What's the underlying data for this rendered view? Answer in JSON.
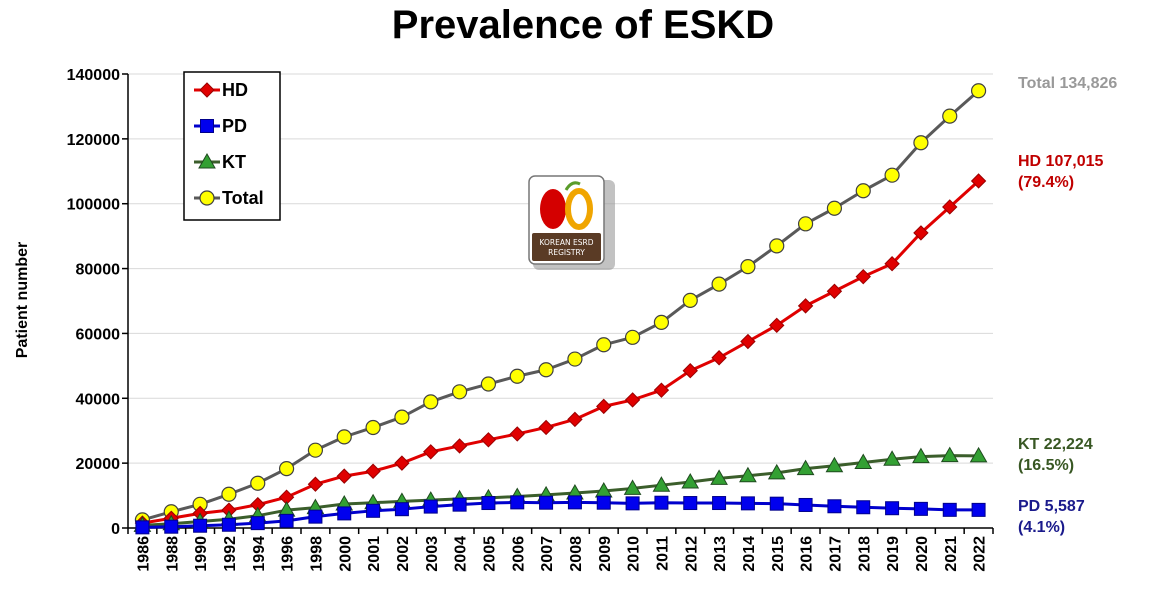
{
  "chart_data": {
    "type": "line",
    "title": "Prevalence of ESKD",
    "ylabel": "Patient number",
    "xlabel": "",
    "ylim": [
      0,
      140000
    ],
    "yticks": [
      0,
      20000,
      40000,
      60000,
      80000,
      100000,
      120000,
      140000
    ],
    "grid": "horizontal",
    "legend_position": "top-left",
    "categories": [
      "1986",
      "1988",
      "1990",
      "1992",
      "1994",
      "1996",
      "1998",
      "2000",
      "2001",
      "2002",
      "2003",
      "2004",
      "2005",
      "2006",
      "2007",
      "2008",
      "2009",
      "2010",
      "2011",
      "2012",
      "2013",
      "2014",
      "2015",
      "2016",
      "2017",
      "2018",
      "2019",
      "2020",
      "2021",
      "2022"
    ],
    "series": [
      {
        "name": "HD",
        "color": "#e00000",
        "marker": "diamond",
        "markerColor": "#e00000",
        "values": [
          1500,
          3000,
          4500,
          5500,
          7200,
          9500,
          13500,
          16000,
          17500,
          20000,
          23500,
          25300,
          27200,
          29000,
          31000,
          33500,
          37500,
          39500,
          42500,
          48500,
          52500,
          57500,
          62500,
          68500,
          73000,
          77500,
          81500,
          91000,
          99000,
          107015
        ]
      },
      {
        "name": "PD",
        "color": "#0000cc",
        "marker": "square",
        "markerColor": "#0000ee",
        "values": [
          200,
          400,
          700,
          1000,
          1500,
          2200,
          3500,
          4500,
          5300,
          5800,
          6600,
          7200,
          7700,
          7900,
          7800,
          7900,
          7800,
          7600,
          7800,
          7700,
          7700,
          7600,
          7500,
          7100,
          6700,
          6400,
          6100,
          5900,
          5600,
          5587
        ]
      },
      {
        "name": "KT",
        "color": "#3b5e2b",
        "marker": "triangle",
        "markerColor": "#33a033",
        "values": [
          800,
          1300,
          2000,
          2700,
          3800,
          5500,
          6300,
          7400,
          7800,
          8200,
          8600,
          9000,
          9300,
          9700,
          10200,
          10800,
          11400,
          12200,
          13200,
          14200,
          15300,
          16100,
          17000,
          18300,
          19200,
          20200,
          21200,
          22000,
          22300,
          22224
        ]
      },
      {
        "name": "Total",
        "color": "#595959",
        "marker": "circle",
        "markerColor": "#ffff00",
        "values": [
          2500,
          5000,
          7300,
          10400,
          13800,
          18300,
          24000,
          28100,
          31000,
          34200,
          38900,
          42000,
          44400,
          46800,
          48800,
          52100,
          56500,
          58800,
          63400,
          70200,
          75200,
          80600,
          87000,
          93800,
          98600,
          104000,
          108800,
          118800,
          127000,
          134826
        ]
      }
    ],
    "annotations": [
      {
        "series": "Total",
        "lines": [
          "Total 134,826"
        ],
        "color": "#999999"
      },
      {
        "series": "HD",
        "lines": [
          "HD 107,015",
          "(79.4%)"
        ],
        "color": "#c00000"
      },
      {
        "series": "KT",
        "lines": [
          "KT 22,224",
          "(16.5%)"
        ],
        "color": "#385723"
      },
      {
        "series": "PD",
        "lines": [
          "PD 5,587",
          "(4.1%)"
        ],
        "color": "#1a1a8c"
      }
    ],
    "logo": {
      "lines": [
        "KOREAN ESRD",
        "REGISTRY"
      ]
    }
  }
}
